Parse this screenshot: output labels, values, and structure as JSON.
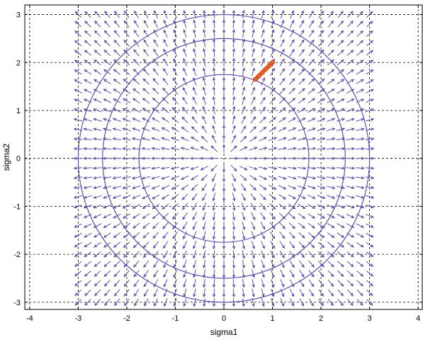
{
  "chart_data": {
    "type": "vector-field",
    "xlabel": "sigma1",
    "ylabel": "sigma2",
    "xlim": [
      -4.1,
      4.1
    ],
    "ylim": [
      -3.15,
      3.2
    ],
    "xticks": [
      -4,
      -3,
      -2,
      -1,
      0,
      1,
      2,
      3,
      4
    ],
    "yticks": [
      -3,
      -2,
      -1,
      0,
      1,
      2,
      3
    ],
    "xtick_labels": [
      "-4",
      "-3",
      "-2",
      "-1",
      "0",
      "1",
      "2",
      "3",
      "4"
    ],
    "ytick_labels": [
      "-3",
      "-2",
      "-1",
      "0",
      "1",
      "2",
      "3"
    ],
    "grid": true,
    "grid_style": "dashed",
    "field": {
      "x_range": [
        -3,
        3
      ],
      "y_range": [
        -3,
        3
      ],
      "step": 0.2,
      "direction": "radially outward",
      "arrow_color": "#5b4fa8"
    },
    "circles": [
      {
        "radius": 1.75,
        "color": "#5b4fa8"
      },
      {
        "radius": 2.5,
        "color": "#5b4fa8"
      },
      {
        "radius": 3.0,
        "color": "#5b4fa8"
      }
    ],
    "trajectory": {
      "color": "#e8632c",
      "x": [
        0.65,
        0.72,
        0.79,
        0.86,
        0.93,
        1.0
      ],
      "y": [
        1.65,
        1.72,
        1.79,
        1.86,
        1.93,
        2.0
      ]
    }
  }
}
